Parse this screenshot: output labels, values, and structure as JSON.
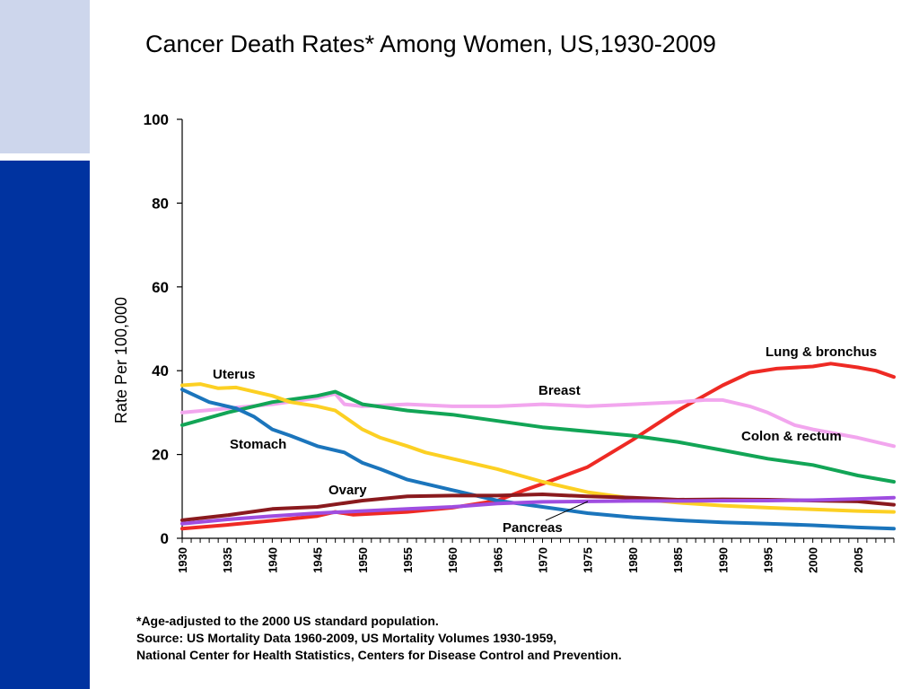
{
  "title": "Cancer Death Rates* Among Women, US,1930-2009",
  "notes": [
    "*Age-adjusted to the 2000 US standard population.",
    "Source:  US Mortality Data 1960-2009, US Mortality Volumes 1930-1959,",
    "National Center for Health Statistics, Centers for Disease Control and Prevention."
  ],
  "colors": {
    "sidebar_light": "#cdd6ec",
    "sidebar_dark": "#0033a0"
  },
  "chart_data": {
    "type": "line",
    "title": "Cancer Death Rates* Among Women, US,1930-2009",
    "xlabel": "",
    "ylabel": "Rate Per 100,000",
    "xlim": [
      1930,
      2009
    ],
    "ylim": [
      0,
      100
    ],
    "yticks": [
      0,
      20,
      40,
      60,
      80,
      100
    ],
    "xticks": [
      1930,
      1935,
      1940,
      1945,
      1950,
      1955,
      1960,
      1965,
      1970,
      1975,
      1980,
      1985,
      1990,
      1995,
      2000,
      2005
    ],
    "grid": false,
    "series": [
      {
        "name": "Lung & bronchus",
        "color": "#ee2a24",
        "points": [
          [
            1930,
            2.3
          ],
          [
            1935,
            3.2
          ],
          [
            1940,
            4.2
          ],
          [
            1945,
            5.3
          ],
          [
            1947,
            6.3
          ],
          [
            1949,
            5.6
          ],
          [
            1955,
            6.3
          ],
          [
            1960,
            7.3
          ],
          [
            1965,
            9.0
          ],
          [
            1968,
            11.5
          ],
          [
            1970,
            13.0
          ],
          [
            1975,
            17.0
          ],
          [
            1980,
            23.5
          ],
          [
            1985,
            30.5
          ],
          [
            1990,
            36.5
          ],
          [
            1993,
            39.5
          ],
          [
            1996,
            40.5
          ],
          [
            2000,
            41.0
          ],
          [
            2002,
            41.7
          ],
          [
            2005,
            40.8
          ],
          [
            2007,
            40.0
          ],
          [
            2009,
            38.5
          ]
        ]
      },
      {
        "name": "Breast",
        "color": "#f2a6ee",
        "points": [
          [
            1930,
            30.0
          ],
          [
            1935,
            31.0
          ],
          [
            1940,
            32.0
          ],
          [
            1945,
            33.5
          ],
          [
            1947,
            34.5
          ],
          [
            1948,
            32.0
          ],
          [
            1950,
            31.5
          ],
          [
            1955,
            32.0
          ],
          [
            1960,
            31.5
          ],
          [
            1965,
            31.5
          ],
          [
            1970,
            32.0
          ],
          [
            1975,
            31.5
          ],
          [
            1980,
            32.0
          ],
          [
            1985,
            32.5
          ],
          [
            1988,
            33.0
          ],
          [
            1990,
            33.0
          ],
          [
            1993,
            31.5
          ],
          [
            1995,
            30.0
          ],
          [
            1998,
            27.0
          ],
          [
            2000,
            26.0
          ],
          [
            2005,
            24.0
          ],
          [
            2009,
            22.0
          ]
        ]
      },
      {
        "name": "Colon & rectum",
        "color": "#12a556",
        "points": [
          [
            1930,
            27.0
          ],
          [
            1935,
            30.0
          ],
          [
            1940,
            32.5
          ],
          [
            1945,
            34.0
          ],
          [
            1947,
            35.0
          ],
          [
            1950,
            32.0
          ],
          [
            1955,
            30.5
          ],
          [
            1960,
            29.5
          ],
          [
            1965,
            28.0
          ],
          [
            1970,
            26.5
          ],
          [
            1975,
            25.5
          ],
          [
            1980,
            24.5
          ],
          [
            1985,
            23.0
          ],
          [
            1990,
            21.0
          ],
          [
            1995,
            19.0
          ],
          [
            2000,
            17.5
          ],
          [
            2003,
            16.0
          ],
          [
            2005,
            15.0
          ],
          [
            2009,
            13.5
          ]
        ]
      },
      {
        "name": "Stomach",
        "color": "#1b75bc",
        "points": [
          [
            1930,
            35.5
          ],
          [
            1933,
            32.5
          ],
          [
            1936,
            31.0
          ],
          [
            1938,
            29.0
          ],
          [
            1940,
            26.0
          ],
          [
            1942,
            24.5
          ],
          [
            1945,
            22.0
          ],
          [
            1948,
            20.5
          ],
          [
            1950,
            18.0
          ],
          [
            1952,
            16.5
          ],
          [
            1955,
            14.0
          ],
          [
            1960,
            11.5
          ],
          [
            1965,
            9.0
          ],
          [
            1970,
            7.5
          ],
          [
            1975,
            6.0
          ],
          [
            1980,
            5.0
          ],
          [
            1985,
            4.3
          ],
          [
            1990,
            3.8
          ],
          [
            1995,
            3.5
          ],
          [
            2000,
            3.1
          ],
          [
            2005,
            2.6
          ],
          [
            2009,
            2.3
          ]
        ]
      },
      {
        "name": "Uterus",
        "color": "#fcd023",
        "points": [
          [
            1930,
            36.5
          ],
          [
            1932,
            36.8
          ],
          [
            1934,
            35.8
          ],
          [
            1936,
            36.0
          ],
          [
            1938,
            35.0
          ],
          [
            1940,
            34.0
          ],
          [
            1942,
            32.5
          ],
          [
            1945,
            31.5
          ],
          [
            1947,
            30.5
          ],
          [
            1950,
            26.0
          ],
          [
            1952,
            24.0
          ],
          [
            1955,
            22.0
          ],
          [
            1957,
            20.5
          ],
          [
            1960,
            19.0
          ],
          [
            1965,
            16.5
          ],
          [
            1970,
            13.5
          ],
          [
            1975,
            11.0
          ],
          [
            1980,
            9.5
          ],
          [
            1985,
            8.5
          ],
          [
            1990,
            7.8
          ],
          [
            1995,
            7.3
          ],
          [
            2000,
            6.9
          ],
          [
            2005,
            6.5
          ],
          [
            2009,
            6.3
          ]
        ]
      },
      {
        "name": "Ovary",
        "color": "#8a1a1e",
        "points": [
          [
            1930,
            4.3
          ],
          [
            1935,
            5.5
          ],
          [
            1940,
            7.0
          ],
          [
            1945,
            7.5
          ],
          [
            1950,
            9.0
          ],
          [
            1955,
            10.0
          ],
          [
            1960,
            10.2
          ],
          [
            1965,
            10.2
          ],
          [
            1970,
            10.5
          ],
          [
            1975,
            10.0
          ],
          [
            1980,
            9.7
          ],
          [
            1985,
            9.2
          ],
          [
            1990,
            9.3
          ],
          [
            1995,
            9.2
          ],
          [
            2000,
            9.0
          ],
          [
            2005,
            8.8
          ],
          [
            2009,
            8.0
          ]
        ]
      },
      {
        "name": "Pancreas",
        "color": "#9f4de0",
        "points": [
          [
            1930,
            3.5
          ],
          [
            1935,
            4.5
          ],
          [
            1940,
            5.3
          ],
          [
            1945,
            6.0
          ],
          [
            1950,
            6.5
          ],
          [
            1955,
            7.0
          ],
          [
            1960,
            7.5
          ],
          [
            1965,
            8.3
          ],
          [
            1970,
            8.7
          ],
          [
            1975,
            8.8
          ],
          [
            1980,
            8.9
          ],
          [
            1985,
            8.9
          ],
          [
            1990,
            9.0
          ],
          [
            1995,
            9.0
          ],
          [
            2000,
            9.1
          ],
          [
            2005,
            9.4
          ],
          [
            2009,
            9.7
          ]
        ]
      }
    ],
    "annotations": [
      {
        "text": "Uterus",
        "series": "Uterus"
      },
      {
        "text": "Stomach",
        "series": "Stomach"
      },
      {
        "text": "Breast",
        "series": "Breast"
      },
      {
        "text": "Lung & bronchus",
        "series": "Lung & bronchus"
      },
      {
        "text": "Colon & rectum",
        "series": "Colon & rectum"
      },
      {
        "text": "Ovary",
        "series": "Ovary"
      },
      {
        "text": "Pancreas",
        "series": "Pancreas"
      }
    ]
  }
}
